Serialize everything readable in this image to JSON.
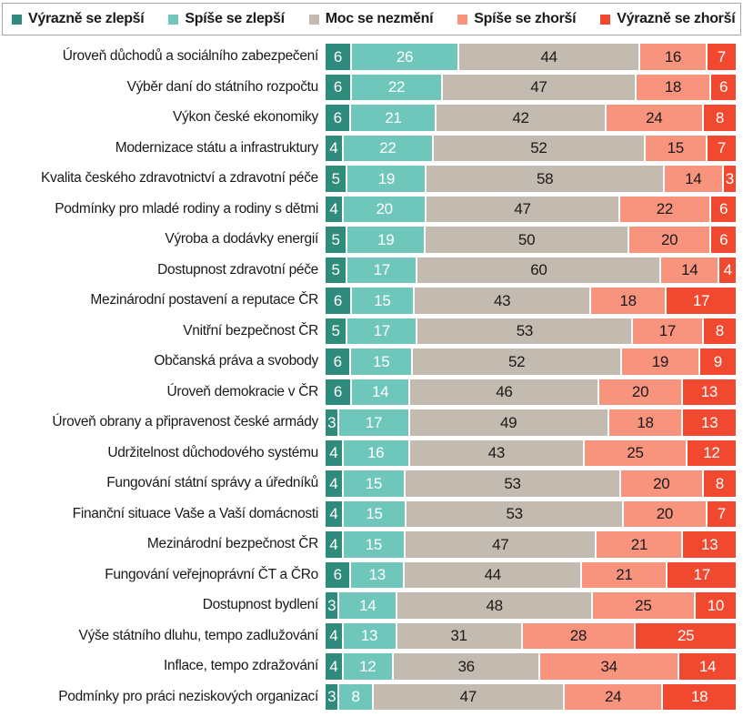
{
  "page": {
    "background_color": "#ffffff"
  },
  "legend": {
    "position": "top",
    "border_color": "#a6a6a6"
  },
  "chart_data": {
    "type": "bar",
    "stacked": true,
    "orientation": "horizontal",
    "normalized_percent": true,
    "legend_position": "top",
    "grid": false,
    "categories": [
      "Úroveň důchodů a sociálního zabezpečení",
      "Výběr daní do státního rozpočtu",
      "Výkon české ekonomiky",
      "Modernizace státu a infrastruktury",
      "Kvalita českého zdravotnictví a zdravotní péče",
      "Podmínky pro mladé rodiny a rodiny s dětmi",
      "Výroba a dodávky energií",
      "Dostupnost zdravotní péče",
      "Mezinárodní postavení a reputace ČR",
      "Vnitřní bezpečnost ČR",
      "Občanská práva a svobody",
      "Úroveň demokracie v ČR",
      "Úroveň obrany a připravenost české armády",
      "Udržitelnost důchodového systému",
      "Fungování státní správy a úředníků",
      "Finanční situace Vaše a Vaší domácnosti",
      "Mezinárodní bezpečnost ČR",
      "Fungování veřejnoprávní ČT a ČRo",
      "Dostupnost bydlení",
      "Výše státního dluhu, tempo zadlužování",
      "Inflace, tempo zdražování",
      "Podmínky pro práci neziskových organizací"
    ],
    "series": [
      {
        "name": "Výrazně se zlepší",
        "color": "#2F8B7C",
        "text_color": "#FFFFFF",
        "values": [
          6,
          6,
          6,
          4,
          5,
          4,
          5,
          5,
          6,
          5,
          6,
          6,
          3,
          4,
          4,
          4,
          4,
          6,
          3,
          4,
          4,
          3
        ]
      },
      {
        "name": "Spíše se zlepší",
        "color": "#6FC6BA",
        "text_color": "#FFFFFF",
        "values": [
          26,
          22,
          21,
          22,
          19,
          20,
          19,
          17,
          15,
          17,
          15,
          14,
          17,
          16,
          15,
          15,
          15,
          13,
          14,
          13,
          12,
          8
        ]
      },
      {
        "name": "Moc se nezmění",
        "color": "#C3BBAF",
        "text_color": "#1A1A1A",
        "values": [
          44,
          47,
          42,
          52,
          58,
          47,
          50,
          60,
          43,
          53,
          52,
          46,
          49,
          43,
          53,
          53,
          47,
          44,
          48,
          31,
          36,
          47
        ]
      },
      {
        "name": "Spíše se zhorší",
        "color": "#F8937E",
        "text_color": "#1A1A1A",
        "values": [
          16,
          18,
          24,
          15,
          14,
          22,
          20,
          14,
          18,
          17,
          19,
          20,
          18,
          25,
          20,
          20,
          21,
          21,
          25,
          28,
          34,
          24
        ]
      },
      {
        "name": "Výrazně se zhorší",
        "color": "#F1492F",
        "text_color": "#FFFFFF",
        "values": [
          7,
          6,
          8,
          7,
          3,
          6,
          6,
          4,
          17,
          8,
          9,
          13,
          13,
          12,
          8,
          7,
          13,
          17,
          10,
          25,
          14,
          18
        ]
      }
    ]
  }
}
